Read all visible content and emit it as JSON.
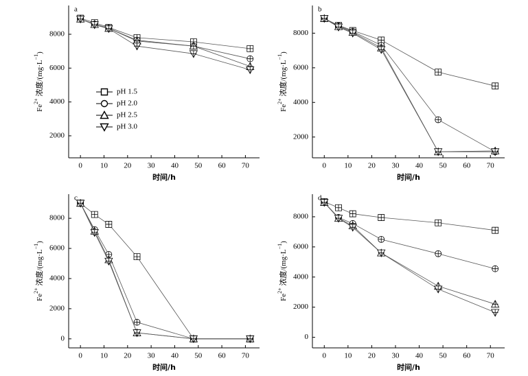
{
  "chart_data": [
    {
      "type": "line",
      "label": "a",
      "xlabel": "时间/h",
      "ylabel": [
        "Fe",
        "2+",
        " 浓度/(mg·L",
        "−1",
        ")"
      ],
      "x": [
        0,
        6,
        12,
        24,
        48,
        72
      ],
      "xlim": [
        -5,
        76
      ],
      "xticks": [
        0,
        10,
        20,
        30,
        40,
        50,
        60,
        70
      ],
      "ylim": [
        700,
        9700
      ],
      "yticks": [
        2000,
        4000,
        6000,
        8000
      ],
      "legend": "center left",
      "series": [
        {
          "name": "pH 1.5",
          "marker": "square",
          "color": "#000000",
          "values": [
            8950,
            8680,
            8400,
            7800,
            7550,
            7150
          ]
        },
        {
          "name": "pH 2.0",
          "marker": "circle",
          "color": "#000000",
          "values": [
            8900,
            8600,
            8350,
            7650,
            7300,
            6550
          ]
        },
        {
          "name": "pH 2.5",
          "marker": "triangle-up",
          "color": "#000000",
          "values": [
            8900,
            8580,
            8350,
            7600,
            7300,
            6100
          ]
        },
        {
          "name": "pH 3.0",
          "marker": "triangle-down",
          "color": "#000000",
          "values": [
            8900,
            8560,
            8330,
            7300,
            6850,
            5900
          ]
        }
      ]
    },
    {
      "type": "line",
      "label": "b",
      "xlabel": "时间/h",
      "ylabel": [
        "Fe",
        "2+",
        " 浓度/(mg·L",
        "−1",
        ")"
      ],
      "x": [
        0,
        6,
        12,
        24,
        48,
        72
      ],
      "xlim": [
        -5,
        76
      ],
      "xticks": [
        0,
        10,
        20,
        30,
        40,
        50,
        60,
        70
      ],
      "ylim": [
        800,
        9600
      ],
      "yticks": [
        2000,
        4000,
        6000,
        8000
      ],
      "series": [
        {
          "marker": "square",
          "color": "#000000",
          "values": [
            8850,
            8450,
            8150,
            7600,
            5750,
            4950
          ]
        },
        {
          "marker": "circle",
          "color": "#000000",
          "values": [
            8850,
            8420,
            8100,
            7300,
            3000,
            1150
          ]
        },
        {
          "marker": "triangle-up",
          "color": "#000000",
          "values": [
            8850,
            8380,
            8050,
            7150,
            1150,
            1200
          ]
        },
        {
          "marker": "triangle-down",
          "color": "#000000",
          "values": [
            8850,
            8350,
            8000,
            7050,
            1150,
            1150
          ]
        }
      ]
    },
    {
      "type": "line",
      "label": "c",
      "xlabel": "时间/h",
      "ylabel": [
        "Fe",
        "2+",
        " 浓度/(mg·L",
        "−1",
        ")"
      ],
      "x": [
        0,
        6,
        12,
        24,
        48,
        72
      ],
      "xlim": [
        -5,
        76
      ],
      "xticks": [
        0,
        10,
        20,
        30,
        40,
        50,
        60,
        70
      ],
      "ylim": [
        -600,
        9600
      ],
      "yticks": [
        0,
        2000,
        4000,
        6000,
        8000
      ],
      "series": [
        {
          "marker": "square",
          "color": "#000000",
          "values": [
            9000,
            8250,
            7600,
            5450,
            0,
            0
          ]
        },
        {
          "marker": "circle",
          "color": "#000000",
          "values": [
            9000,
            7250,
            5600,
            1100,
            0,
            0
          ]
        },
        {
          "marker": "triangle-up",
          "color": "#000000",
          "values": [
            9000,
            7150,
            5250,
            400,
            0,
            0
          ]
        },
        {
          "marker": "triangle-down",
          "color": "#000000",
          "values": [
            9000,
            7050,
            5150,
            400,
            0,
            0
          ]
        }
      ]
    },
    {
      "type": "line",
      "label": "d",
      "xlabel": "时间/h",
      "ylabel": [
        "Fe",
        "2+",
        " 浓度/(mg·L",
        "−1",
        ")"
      ],
      "x": [
        0,
        6,
        12,
        24,
        48,
        72
      ],
      "xlim": [
        -5,
        76
      ],
      "xticks": [
        0,
        10,
        20,
        30,
        40,
        50,
        60,
        70
      ],
      "ylim": [
        -700,
        9500
      ],
      "yticks": [
        0,
        2000,
        4000,
        6000,
        8000
      ],
      "series": [
        {
          "marker": "square",
          "color": "#000000",
          "values": [
            9000,
            8600,
            8200,
            7950,
            7600,
            7100
          ]
        },
        {
          "marker": "circle",
          "color": "#000000",
          "values": [
            8950,
            7950,
            7550,
            6500,
            5550,
            4550
          ]
        },
        {
          "marker": "triangle-up",
          "color": "#000000",
          "values": [
            8950,
            7900,
            7400,
            5600,
            3400,
            2200
          ]
        },
        {
          "marker": "triangle-down",
          "color": "#000000",
          "values": [
            8950,
            7900,
            7300,
            5600,
            3200,
            1650
          ]
        }
      ]
    }
  ]
}
